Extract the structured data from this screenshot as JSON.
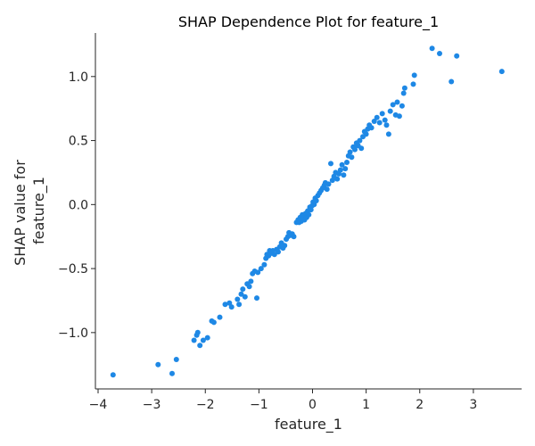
{
  "chart_data": {
    "type": "scatter",
    "title": "SHAP Dependence Plot for feature_1",
    "xlabel": "feature_1",
    "ylabel_lines": [
      "SHAP value for",
      "feature_1"
    ],
    "xlim": [
      -4.05,
      3.9
    ],
    "ylim": [
      -1.44,
      1.34
    ],
    "x_ticks": [
      -4,
      -3,
      -2,
      -1,
      0,
      1,
      2,
      3
    ],
    "x_tick_labels": [
      "−4",
      "−3",
      "−2",
      "−1",
      "0",
      "1",
      "2",
      "3"
    ],
    "y_ticks": [
      -1.0,
      -0.5,
      0.0,
      0.5,
      1.0
    ],
    "y_tick_labels": [
      "−1.0",
      "−0.5",
      "0.0",
      "0.5",
      "1.0"
    ],
    "grid": false,
    "point_color": "#1e88e5",
    "points": [
      [
        -3.72,
        -1.33
      ],
      [
        -2.88,
        -1.25
      ],
      [
        -2.62,
        -1.32
      ],
      [
        -2.54,
        -1.21
      ],
      [
        -2.21,
        -1.06
      ],
      [
        -2.16,
        -1.02
      ],
      [
        -2.14,
        -1.0
      ],
      [
        -2.1,
        -1.1
      ],
      [
        -2.04,
        -1.06
      ],
      [
        -1.96,
        -1.04
      ],
      [
        -1.88,
        -0.91
      ],
      [
        -1.84,
        -0.92
      ],
      [
        -1.73,
        -0.88
      ],
      [
        -1.63,
        -0.78
      ],
      [
        -1.55,
        -0.77
      ],
      [
        -1.51,
        -0.8
      ],
      [
        -1.4,
        -0.74
      ],
      [
        -1.37,
        -0.78
      ],
      [
        -1.33,
        -0.7
      ],
      [
        -1.3,
        -0.66
      ],
      [
        -1.26,
        -0.72
      ],
      [
        -1.22,
        -0.62
      ],
      [
        -1.18,
        -0.64
      ],
      [
        -1.15,
        -0.6
      ],
      [
        -1.12,
        -0.54
      ],
      [
        -1.08,
        -0.52
      ],
      [
        -1.04,
        -0.73
      ],
      [
        -1.02,
        -0.53
      ],
      [
        -0.96,
        -0.5
      ],
      [
        -0.9,
        -0.47
      ],
      [
        -0.87,
        -0.42
      ],
      [
        -0.85,
        -0.39
      ],
      [
        -0.82,
        -0.4
      ],
      [
        -0.8,
        -0.36
      ],
      [
        -0.77,
        -0.38
      ],
      [
        -0.74,
        -0.36
      ],
      [
        -0.71,
        -0.39
      ],
      [
        -0.67,
        -0.35
      ],
      [
        -0.64,
        -0.37
      ],
      [
        -0.61,
        -0.33
      ],
      [
        -0.58,
        -0.3
      ],
      [
        -0.55,
        -0.34
      ],
      [
        -0.52,
        -0.32
      ],
      [
        -0.49,
        -0.27
      ],
      [
        -0.46,
        -0.25
      ],
      [
        -0.44,
        -0.22
      ],
      [
        -0.41,
        -0.24
      ],
      [
        -0.38,
        -0.23
      ],
      [
        -0.35,
        -0.25
      ],
      [
        -0.3,
        -0.14
      ],
      [
        -0.27,
        -0.12
      ],
      [
        -0.25,
        -0.14
      ],
      [
        -0.23,
        -0.1
      ],
      [
        -0.21,
        -0.13
      ],
      [
        -0.19,
        -0.08
      ],
      [
        -0.17,
        -0.11
      ],
      [
        -0.15,
        -0.12
      ],
      [
        -0.13,
        -0.07
      ],
      [
        -0.11,
        -0.1
      ],
      [
        -0.09,
        -0.05
      ],
      [
        -0.07,
        -0.08
      ],
      [
        -0.05,
        -0.02
      ],
      [
        -0.03,
        -0.04
      ],
      [
        -0.01,
        -0.01
      ],
      [
        0.01,
        0.02
      ],
      [
        0.03,
        0.0
      ],
      [
        0.05,
        0.05
      ],
      [
        0.07,
        0.03
      ],
      [
        0.1,
        0.07
      ],
      [
        0.13,
        0.09
      ],
      [
        0.16,
        0.11
      ],
      [
        0.19,
        0.13
      ],
      [
        0.22,
        0.15
      ],
      [
        0.24,
        0.17
      ],
      [
        0.27,
        0.12
      ],
      [
        0.3,
        0.16
      ],
      [
        0.34,
        0.32
      ],
      [
        0.37,
        0.19
      ],
      [
        0.4,
        0.22
      ],
      [
        0.43,
        0.25
      ],
      [
        0.46,
        0.2
      ],
      [
        0.49,
        0.24
      ],
      [
        0.52,
        0.27
      ],
      [
        0.55,
        0.31
      ],
      [
        0.58,
        0.23
      ],
      [
        0.61,
        0.28
      ],
      [
        0.64,
        0.33
      ],
      [
        0.67,
        0.38
      ],
      [
        0.7,
        0.41
      ],
      [
        0.73,
        0.37
      ],
      [
        0.76,
        0.45
      ],
      [
        0.79,
        0.43
      ],
      [
        0.82,
        0.48
      ],
      [
        0.85,
        0.46
      ],
      [
        0.88,
        0.5
      ],
      [
        0.91,
        0.44
      ],
      [
        0.94,
        0.53
      ],
      [
        0.97,
        0.57
      ],
      [
        1.0,
        0.55
      ],
      [
        1.03,
        0.59
      ],
      [
        1.06,
        0.62
      ],
      [
        1.1,
        0.6
      ],
      [
        1.15,
        0.65
      ],
      [
        1.2,
        0.68
      ],
      [
        1.25,
        0.64
      ],
      [
        1.3,
        0.71
      ],
      [
        1.35,
        0.66
      ],
      [
        1.38,
        0.62
      ],
      [
        1.42,
        0.55
      ],
      [
        1.45,
        0.73
      ],
      [
        1.5,
        0.78
      ],
      [
        1.55,
        0.7
      ],
      [
        1.58,
        0.8
      ],
      [
        1.62,
        0.69
      ],
      [
        1.67,
        0.77
      ],
      [
        1.7,
        0.87
      ],
      [
        1.72,
        0.91
      ],
      [
        1.88,
        0.94
      ],
      [
        1.9,
        1.01
      ],
      [
        2.23,
        1.22
      ],
      [
        2.37,
        1.18
      ],
      [
        2.59,
        0.96
      ],
      [
        2.69,
        1.16
      ],
      [
        3.53,
        1.04
      ]
    ]
  }
}
